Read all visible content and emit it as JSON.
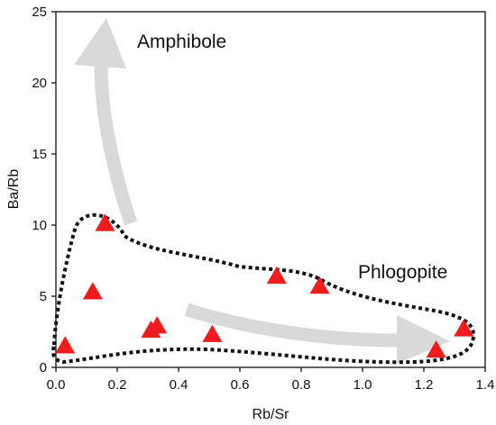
{
  "chart_data": {
    "type": "scatter",
    "title": "",
    "xlabel": "Rb/Sr",
    "ylabel": "Ba/Rb",
    "xlim": [
      0,
      1.4
    ],
    "ylim": [
      0,
      25
    ],
    "xticks": [
      "0.0",
      "0.2",
      "0.4",
      "0.6",
      "0.8",
      "1.0",
      "1.2",
      "1.4"
    ],
    "yticks": [
      "0",
      "5",
      "10",
      "15",
      "20",
      "25"
    ],
    "grid": false,
    "marker": "triangle",
    "marker_color": "#ee1c1c",
    "points": [
      {
        "x": 0.03,
        "y": 1.5
      },
      {
        "x": 0.12,
        "y": 5.3
      },
      {
        "x": 0.16,
        "y": 10.1
      },
      {
        "x": 0.31,
        "y": 2.6
      },
      {
        "x": 0.33,
        "y": 2.9
      },
      {
        "x": 0.51,
        "y": 2.3
      },
      {
        "x": 0.72,
        "y": 6.4
      },
      {
        "x": 0.86,
        "y": 5.7
      },
      {
        "x": 1.24,
        "y": 1.2
      },
      {
        "x": 1.33,
        "y": 2.7
      }
    ],
    "annotations": [
      {
        "text": "Amphibole"
      },
      {
        "text": "Phlogopite"
      }
    ],
    "arrow_color": "#d9d9d9",
    "outline_color": "#111111"
  }
}
